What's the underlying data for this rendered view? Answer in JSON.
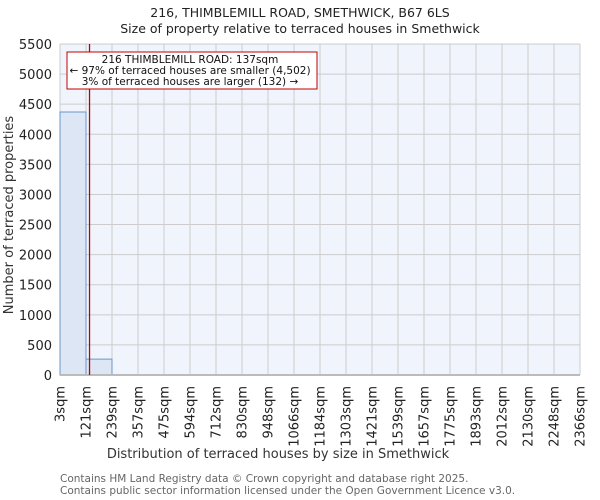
{
  "title": {
    "line1": "216, THIMBLEMILL ROAD, SMETHWICK, B67 6LS",
    "line2": "Size of property relative to terraced houses in Smethwick"
  },
  "annotation": {
    "line1": "216 THIMBLEMILL ROAD: 137sqm",
    "line2": "← 97% of terraced houses are smaller (4,502)",
    "line3": "3% of terraced houses are larger (132) →"
  },
  "footer": {
    "line1": "Contains HM Land Registry data © Crown copyright and database right 2025.",
    "line2": "Contains public sector information licensed under the Open Government Licence v3.0."
  },
  "colors": {
    "plot_bg": "#f0f4fd",
    "grid": "#cccccc",
    "bar_fill": "#dce6f4",
    "bar_edge": "#6b96cd",
    "marker": "#c00000",
    "anno_border": "#c00000"
  },
  "chart_data": {
    "type": "bar",
    "title": "216, THIMBLEMILL ROAD, SMETHWICK, B67 6LS — Size of property relative to terraced houses in Smethwick",
    "xlabel": "Distribution of terraced houses by size in Smethwick",
    "ylabel": "Number of terraced properties",
    "ylim": [
      0,
      5500
    ],
    "yticks": [
      0,
      500,
      1000,
      1500,
      2000,
      2500,
      3000,
      3500,
      4000,
      4500,
      5000,
      5500
    ],
    "bin_edges_labels": [
      "3sqm",
      "121sqm",
      "239sqm",
      "357sqm",
      "475sqm",
      "594sqm",
      "712sqm",
      "830sqm",
      "948sqm",
      "1066sqm",
      "1184sqm",
      "1303sqm",
      "1421sqm",
      "1539sqm",
      "1657sqm",
      "1775sqm",
      "1893sqm",
      "2012sqm",
      "2130sqm",
      "2248sqm",
      "2366sqm"
    ],
    "bin_edges": [
      3,
      121,
      239,
      357,
      475,
      594,
      712,
      830,
      948,
      1066,
      1184,
      1303,
      1421,
      1539,
      1657,
      1775,
      1893,
      2012,
      2130,
      2248,
      2366
    ],
    "categories": [
      "3-121sqm",
      "121-239sqm",
      "239-357sqm",
      "357-475sqm",
      "475-594sqm",
      "594-712sqm",
      "712-830sqm",
      "830-948sqm",
      "948-1066sqm",
      "1066-1184sqm",
      "1184-1303sqm",
      "1303-1421sqm",
      "1421-1539sqm",
      "1539-1657sqm",
      "1657-1775sqm",
      "1775-1893sqm",
      "1893-2012sqm",
      "2012-2130sqm",
      "2130-2248sqm",
      "2248-2366sqm"
    ],
    "values": [
      4370,
      264,
      0,
      0,
      0,
      0,
      0,
      0,
      0,
      0,
      0,
      0,
      0,
      0,
      0,
      0,
      0,
      0,
      0,
      0
    ],
    "marker": {
      "label": "216 THIMBLEMILL ROAD",
      "x": 137,
      "unit": "sqm"
    },
    "grid": true,
    "legend": null
  }
}
